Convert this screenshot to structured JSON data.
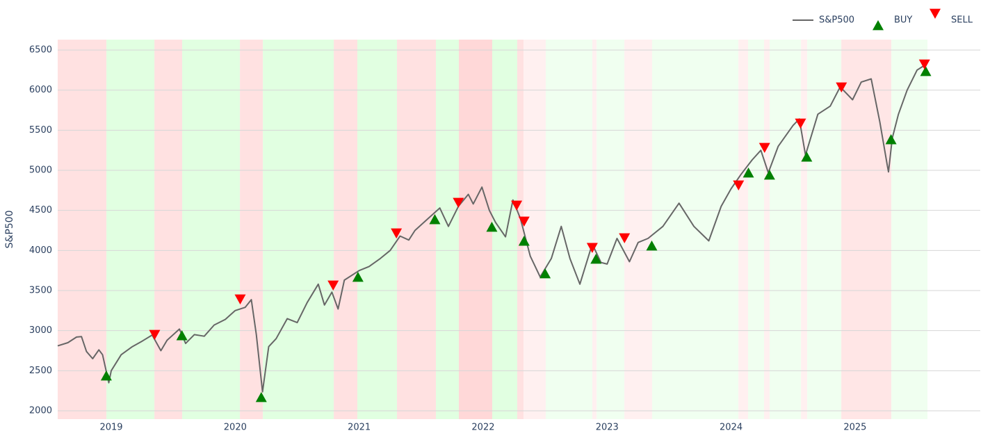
{
  "chart_data": {
    "type": "line",
    "y_label": "S&P500",
    "xlim": [
      2018.568,
      2026.01
    ],
    "xticks": [
      2019,
      2020,
      2021,
      2022,
      2023,
      2024,
      2025
    ],
    "ylim": [
      1896,
      6630
    ],
    "yticks": [
      2000,
      2500,
      3000,
      3500,
      4000,
      4500,
      5000,
      5500,
      6000,
      6500
    ],
    "grid": true,
    "legend": "top-right",
    "regions": [
      {
        "x0": 2018.568,
        "x1": 2018.961,
        "color": "#ffe1e1"
      },
      {
        "x0": 2018.961,
        "x1": 2019.348,
        "color": "#e1ffe1"
      },
      {
        "x0": 2019.348,
        "x1": 2019.572,
        "color": "#ffe1e1"
      },
      {
        "x0": 2019.572,
        "x1": 2020.038,
        "color": "#e1ffe1"
      },
      {
        "x0": 2020.038,
        "x1": 2020.223,
        "color": "#ffe1e1"
      },
      {
        "x0": 2020.223,
        "x1": 2020.795,
        "color": "#e1ffe1"
      },
      {
        "x0": 2020.795,
        "x1": 2020.985,
        "color": "#ffe1e1"
      },
      {
        "x0": 2020.985,
        "x1": 2021.305,
        "color": "#e1ffe1"
      },
      {
        "x0": 2021.305,
        "x1": 2021.619,
        "color": "#ffe1e1"
      },
      {
        "x0": 2021.619,
        "x1": 2021.804,
        "color": "#e1ffe1"
      },
      {
        "x0": 2021.804,
        "x1": 2022.073,
        "color": "#ffd8d8"
      },
      {
        "x0": 2022.073,
        "x1": 2022.275,
        "color": "#e1ffe1"
      },
      {
        "x0": 2022.275,
        "x1": 2022.326,
        "color": "#ffe1e1"
      },
      {
        "x0": 2022.326,
        "x1": 2022.505,
        "color": "#fff0f0"
      },
      {
        "x0": 2022.505,
        "x1": 2022.881,
        "color": "#f0fff0"
      },
      {
        "x0": 2022.881,
        "x1": 2022.915,
        "color": "#fff0f0"
      },
      {
        "x0": 2022.915,
        "x1": 2023.139,
        "color": "#f0fff0"
      },
      {
        "x0": 2023.139,
        "x1": 2023.363,
        "color": "#fff0f0"
      },
      {
        "x0": 2023.363,
        "x1": 2024.059,
        "color": "#f0fff0"
      },
      {
        "x0": 2024.059,
        "x1": 2024.137,
        "color": "#fff0f0"
      },
      {
        "x0": 2024.137,
        "x1": 2024.266,
        "color": "#f0fff0"
      },
      {
        "x0": 2024.266,
        "x1": 2024.311,
        "color": "#fff0f0"
      },
      {
        "x0": 2024.311,
        "x1": 2024.564,
        "color": "#f0fff0"
      },
      {
        "x0": 2024.564,
        "x1": 2024.614,
        "color": "#fff0f0"
      },
      {
        "x0": 2024.614,
        "x1": 2024.889,
        "color": "#f0fff0"
      },
      {
        "x0": 2024.889,
        "x1": 2025.293,
        "color": "#ffe6e6"
      },
      {
        "x0": 2025.293,
        "x1": 2025.584,
        "color": "#f0fff0"
      }
    ],
    "series": [
      {
        "name": "S&P500",
        "mode": "line",
        "color": "#666666",
        "x": [
          2018.568,
          2018.65,
          2018.72,
          2018.76,
          2018.8,
          2018.85,
          2018.9,
          2018.93,
          2018.98,
          2019.0,
          2019.08,
          2019.17,
          2019.25,
          2019.33,
          2019.4,
          2019.45,
          2019.55,
          2019.6,
          2019.67,
          2019.75,
          2019.83,
          2019.92,
          2020.0,
          2020.08,
          2020.13,
          2020.17,
          2020.22,
          2020.27,
          2020.33,
          2020.42,
          2020.5,
          2020.58,
          2020.67,
          2020.72,
          2020.78,
          2020.83,
          2020.88,
          2021.0,
          2021.08,
          2021.17,
          2021.25,
          2021.33,
          2021.4,
          2021.45,
          2021.55,
          2021.65,
          2021.72,
          2021.8,
          2021.88,
          2021.92,
          2021.99,
          2022.05,
          2022.1,
          2022.18,
          2022.24,
          2022.3,
          2022.38,
          2022.46,
          2022.55,
          2022.63,
          2022.7,
          2022.78,
          2022.88,
          2022.95,
          2023.0,
          2023.08,
          2023.18,
          2023.25,
          2023.33,
          2023.45,
          2023.58,
          2023.7,
          2023.82,
          2023.92,
          2024.0,
          2024.08,
          2024.17,
          2024.24,
          2024.3,
          2024.38,
          2024.5,
          2024.55,
          2024.6,
          2024.7,
          2024.8,
          2024.88,
          2024.98,
          2025.05,
          2025.13,
          2025.2,
          2025.26,
          2025.27,
          2025.3,
          2025.35,
          2025.42,
          2025.5,
          2025.55
        ],
        "values": [
          2810,
          2850,
          2920,
          2925,
          2740,
          2650,
          2760,
          2700,
          2350,
          2500,
          2700,
          2800,
          2870,
          2945,
          2750,
          2880,
          3020,
          2840,
          2950,
          2930,
          3070,
          3140,
          3250,
          3290,
          3386,
          2950,
          2237,
          2800,
          2900,
          3150,
          3100,
          3350,
          3580,
          3320,
          3480,
          3270,
          3630,
          3750,
          3800,
          3900,
          4000,
          4180,
          4130,
          4250,
          4390,
          4530,
          4300,
          4550,
          4700,
          4580,
          4790,
          4500,
          4350,
          4170,
          4630,
          4400,
          3930,
          3670,
          3900,
          4300,
          3900,
          3580,
          4080,
          3850,
          3830,
          4150,
          3860,
          4100,
          4150,
          4300,
          4590,
          4300,
          4120,
          4550,
          4770,
          4950,
          5130,
          5250,
          4970,
          5300,
          5560,
          5640,
          5190,
          5700,
          5800,
          6040,
          5880,
          6100,
          6140,
          5600,
          5060,
          4980,
          5400,
          5700,
          6000,
          6250,
          6300
        ]
      },
      {
        "name": "BUY",
        "mode": "markers",
        "marker": "triangle-up",
        "color": "#008000",
        "x": [
          2018.96,
          2019.57,
          2020.21,
          2020.99,
          2021.61,
          2022.07,
          2022.33,
          2022.5,
          2022.91,
          2023.36,
          2024.14,
          2024.31,
          2024.61,
          2025.29,
          2025.57
        ],
        "values": [
          2434,
          2936,
          2165,
          3665,
          4384,
          4289,
          4115,
          3708,
          3890,
          4055,
          4965,
          4939,
          5164,
          5381,
          6231
        ]
      },
      {
        "name": "SELL",
        "mode": "markers",
        "marker": "triangle-down",
        "color": "#ff0000",
        "x": [
          2019.35,
          2020.04,
          2020.79,
          2021.3,
          2021.8,
          2022.27,
          2022.33,
          2022.88,
          2023.14,
          2024.06,
          2024.27,
          2024.56,
          2024.89,
          2025.56
        ],
        "values": [
          2954,
          3396,
          3569,
          4219,
          4601,
          4566,
          4367,
          4038,
          4159,
          4818,
          5286,
          5589,
          6040,
          6326
        ]
      }
    ]
  }
}
